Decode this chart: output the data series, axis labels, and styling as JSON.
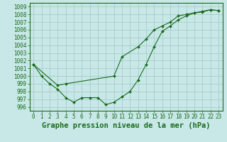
{
  "line1_x": [
    0,
    1,
    2,
    3,
    4,
    5,
    6,
    7,
    8,
    9,
    10,
    11,
    12,
    13,
    14,
    15,
    16,
    17,
    18,
    19,
    20,
    21,
    22,
    23
  ],
  "line1_y": [
    1001.5,
    1000.0,
    999.0,
    998.3,
    997.2,
    996.6,
    997.2,
    997.2,
    997.2,
    996.3,
    996.6,
    997.3,
    998.0,
    999.5,
    1001.5,
    1003.8,
    1005.8,
    1006.5,
    1007.3,
    1007.8,
    1008.2,
    1008.3,
    1008.6,
    1008.5
  ],
  "line2_x": [
    0,
    3,
    4,
    10,
    11,
    13,
    14,
    15,
    16,
    17,
    18,
    19,
    20,
    21,
    22,
    23
  ],
  "line2_y": [
    1001.5,
    998.8,
    999.0,
    1000.0,
    1002.5,
    1003.8,
    1004.8,
    1006.0,
    1006.5,
    1007.0,
    1007.8,
    1008.0,
    1008.2,
    1008.4,
    1008.6,
    1008.5
  ],
  "line_color": "#1a6b1a",
  "bg_color": "#c8e8e8",
  "grid_color": "#aacfcf",
  "xlabel": "Graphe pression niveau de la mer (hPa)",
  "ylim": [
    995.5,
    1009.5
  ],
  "xlim": [
    -0.5,
    23.5
  ],
  "xticks": [
    0,
    1,
    2,
    3,
    4,
    5,
    6,
    7,
    8,
    9,
    10,
    11,
    12,
    13,
    14,
    15,
    16,
    17,
    18,
    19,
    20,
    21,
    22,
    23
  ],
  "yticks": [
    996,
    997,
    998,
    999,
    1000,
    1001,
    1002,
    1003,
    1004,
    1005,
    1006,
    1007,
    1008,
    1009
  ],
  "tick_fontsize": 5.5,
  "xlabel_fontsize": 7.5
}
